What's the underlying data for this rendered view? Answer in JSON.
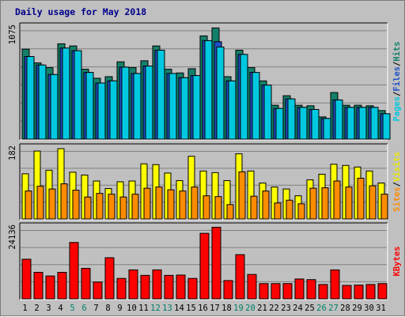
{
  "chart_data": {
    "type": "bar",
    "title": "Daily usage for May 2018",
    "categories": [
      "1",
      "2",
      "3",
      "4",
      "5",
      "6",
      "7",
      "8",
      "9",
      "10",
      "11",
      "12",
      "13",
      "14",
      "15",
      "16",
      "17",
      "18",
      "19",
      "20",
      "21",
      "22",
      "23",
      "24",
      "25",
      "26",
      "27",
      "28",
      "29",
      "30",
      "31"
    ],
    "weekend_days": [
      "5",
      "6",
      "12",
      "13",
      "19",
      "20",
      "26",
      "27"
    ],
    "panels": [
      {
        "key": "hits",
        "ytick": "1075",
        "ylim": [
          0,
          1075
        ],
        "legend": [
          {
            "text": "Pages",
            "color": "#00c8e0"
          },
          {
            "text": "/",
            "color": "#000000"
          },
          {
            "text": "Files",
            "color": "#1e50c8"
          },
          {
            "text": "/",
            "color": "#000000"
          },
          {
            "text": "Hits",
            "color": "#14806a"
          }
        ],
        "series": [
          {
            "name": "Hits",
            "color": "#14806a",
            "values": [
              850,
              720,
              675,
              900,
              880,
              660,
              575,
              590,
              730,
              675,
              740,
              880,
              660,
              625,
              665,
              975,
              1050,
              590,
              840,
              675,
              550,
              320,
              410,
              320,
              315,
              210,
              440,
              320,
              320,
              315,
              270
            ]
          },
          {
            "name": "Files",
            "color": "#1e50c8",
            "values": [
              780,
              700,
              610,
              860,
              835,
              630,
              530,
              550,
              680,
              620,
              690,
              840,
              620,
              580,
              600,
              930,
              920,
              550,
              800,
              630,
              510,
              290,
              380,
              300,
              280,
              195,
              370,
              300,
              300,
              300,
              240
            ]
          },
          {
            "name": "Pages",
            "color": "#00c8e0",
            "values": [
              780,
              700,
              610,
              860,
              835,
              630,
              530,
              550,
              680,
              620,
              690,
              840,
              620,
              580,
              600,
              930,
              870,
              550,
              800,
              630,
              510,
              290,
              380,
              300,
              280,
              195,
              370,
              300,
              300,
              300,
              240
            ]
          }
        ]
      },
      {
        "key": "visits",
        "ytick": "182",
        "ylim": [
          0,
          182
        ],
        "legend": [
          {
            "text": "Sites",
            "color": "#ff8c00"
          },
          {
            "text": "/",
            "color": "#000000"
          },
          {
            "text": "Visits",
            "color": "#e8e800"
          }
        ],
        "series": [
          {
            "name": "Visits",
            "color": "#ffff00",
            "values": [
              113,
              170,
              122,
              176,
              117,
              110,
              95,
              76,
              93,
              95,
              138,
              136,
              115,
              96,
              157,
              120,
              116,
              96,
              163,
              120,
              90,
              80,
              75,
              58,
              98,
              112,
              137,
              134,
              130,
              120,
              90
            ]
          },
          {
            "name": "Sites",
            "color": "#ff8c00",
            "values": [
              70,
              82,
              75,
              88,
              72,
              55,
              64,
              62,
              55,
              62,
              77,
              80,
              73,
              70,
              80,
              58,
              56,
              36,
              118,
              57,
              70,
              40,
              47,
              38,
              77,
              78,
              95,
              80,
              102,
              83,
              62
            ]
          }
        ]
      },
      {
        "key": "kbytes",
        "ytick": "24136",
        "ylim": [
          0,
          24136
        ],
        "legend": [
          {
            "text": "KBytes",
            "color": "#ff0000"
          }
        ],
        "series": [
          {
            "name": "KBytes",
            "color": "#ff0000",
            "values": [
              13000,
              8700,
              7500,
              8700,
              18500,
              10000,
              5500,
              13500,
              6700,
              9500,
              7700,
              9500,
              7700,
              7800,
              6700,
              21500,
              23500,
              6000,
              14500,
              8000,
              5000,
              5000,
              5000,
              6500,
              6300,
              4700,
              9500,
              4400,
              4500,
              4700,
              5000
            ]
          }
        ]
      }
    ]
  }
}
